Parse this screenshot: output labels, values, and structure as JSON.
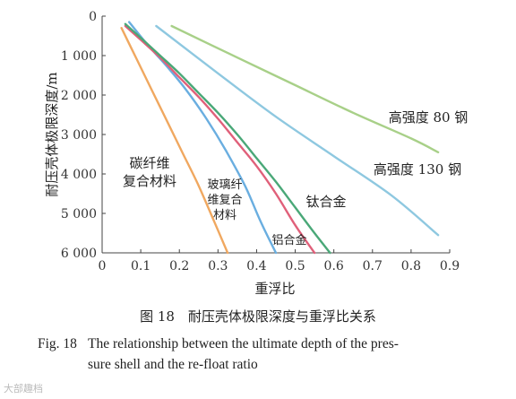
{
  "chart_data": {
    "type": "line",
    "xlabel": "重浮比",
    "ylabel": "耐压壳体极限深度/m",
    "xlim": [
      0,
      0.9
    ],
    "ylim": [
      0,
      6000
    ],
    "y_inverted": true,
    "grid": false,
    "x_ticks": [
      "0",
      "0.1",
      "0.2",
      "0.3",
      "0.4",
      "0.5",
      "0.6",
      "0.7",
      "0.8",
      "0.9"
    ],
    "y_ticks": [
      "0",
      "1 000",
      "2 000",
      "3 000",
      "4 000",
      "5 000",
      "6 000"
    ],
    "series": [
      {
        "name": "碳纤维复合材料",
        "color": "#f0a860",
        "x": [
          0.05,
          0.09,
          0.13,
          0.17,
          0.21,
          0.25,
          0.29,
          0.325
        ],
        "y": [
          300,
          1100,
          1900,
          2700,
          3500,
          4300,
          5200,
          6000
        ]
      },
      {
        "name": "玻璃纤维复合材料",
        "color": "#6aaee0",
        "x": [
          0.07,
          0.12,
          0.17,
          0.22,
          0.27,
          0.32,
          0.37,
          0.41,
          0.45
        ],
        "y": [
          150,
          750,
          1300,
          1900,
          2600,
          3400,
          4300,
          5200,
          6000
        ]
      },
      {
        "name": "铝合金",
        "color": "#e0607a",
        "x": [
          0.06,
          0.1,
          0.15,
          0.2,
          0.25,
          0.3,
          0.35,
          0.4,
          0.45,
          0.5,
          0.55
        ],
        "y": [
          250,
          600,
          1050,
          1550,
          2050,
          2600,
          3200,
          3800,
          4500,
          5300,
          6000
        ]
      },
      {
        "name": "钛合金",
        "color": "#4aa878",
        "x": [
          0.06,
          0.1,
          0.15,
          0.2,
          0.25,
          0.3,
          0.35,
          0.4,
          0.45,
          0.5,
          0.55,
          0.59
        ],
        "y": [
          200,
          550,
          1000,
          1450,
          1950,
          2450,
          3000,
          3600,
          4200,
          4850,
          5500,
          6000
        ]
      },
      {
        "name": "高强度 130 钢",
        "color": "#8ec8e0",
        "x": [
          0.14,
          0.3,
          0.45,
          0.6,
          0.75,
          0.87
        ],
        "y": [
          250,
          1450,
          2550,
          3550,
          4550,
          5550
        ]
      },
      {
        "name": "高强度 80 钢",
        "color": "#a8d088",
        "x": [
          0.18,
          0.35,
          0.5,
          0.65,
          0.8,
          0.87
        ],
        "y": [
          250,
          1050,
          1750,
          2450,
          3100,
          3450
        ]
      }
    ],
    "labels": {
      "carbon": [
        "碳纤维",
        "复合材料"
      ],
      "glass": [
        "玻璃纤",
        "维复合",
        "材料"
      ],
      "aluminum": "铝合金",
      "titanium": "钛合金",
      "steel130": "高强度 130 钢",
      "steel80": "高强度 80 钢"
    }
  },
  "caption_cn": "图 18　耐压壳体极限深度与重浮比关系",
  "caption_en": {
    "fig_label": "Fig. 18",
    "line1": "The relationship between the ultimate depth of the pres-",
    "line2": "sure shell and the re-float ratio"
  },
  "watermark": "大部趣档"
}
